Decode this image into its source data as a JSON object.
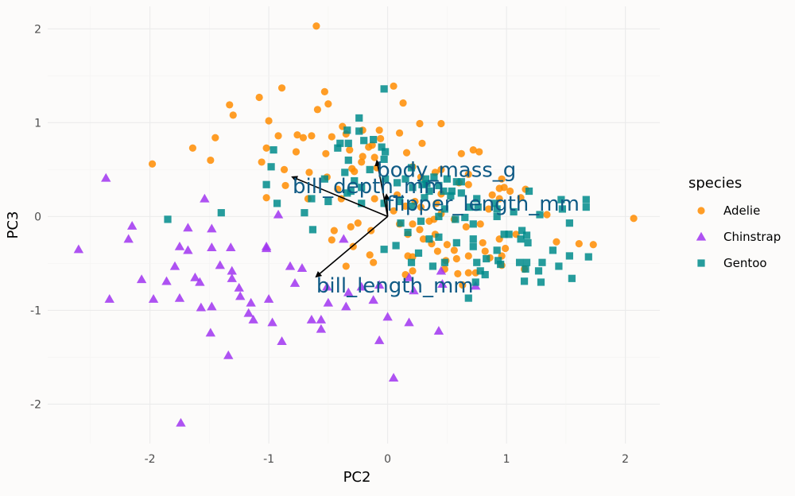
{
  "chart_data": {
    "type": "scatter",
    "title": "",
    "xlabel": "PC2",
    "ylabel": "PC3",
    "xlim": [
      -2.86,
      2.29
    ],
    "ylim": [
      -2.42,
      2.24
    ],
    "xticks": [
      -2,
      -1,
      0,
      1,
      2
    ],
    "yticks": [
      -2,
      -1,
      0,
      1,
      2
    ],
    "xtick_labels": [
      "-2",
      "-1",
      "0",
      "1",
      "2"
    ],
    "ytick_labels": [
      "-2",
      "-1",
      "0",
      "1",
      "2"
    ],
    "grid": true,
    "legend": {
      "title": "species",
      "position": "right"
    },
    "series": [
      {
        "name": "Adelie",
        "color": "#ff8c00",
        "marker": "circle",
        "points": [
          [
            -0.6,
            2.03
          ],
          [
            -0.89,
            1.37
          ],
          [
            -0.53,
            1.33
          ],
          [
            0.05,
            1.39
          ],
          [
            -1.08,
            1.27
          ],
          [
            -0.5,
            1.2
          ],
          [
            -0.59,
            1.14
          ],
          [
            -1.33,
            1.19
          ],
          [
            -1.3,
            1.08
          ],
          [
            0.13,
            1.21
          ],
          [
            -1.0,
            1.02
          ],
          [
            -1.45,
            0.84
          ],
          [
            -1.64,
            0.73
          ],
          [
            -1.49,
            0.6
          ],
          [
            -1.98,
            0.56
          ],
          [
            -1.02,
            0.73
          ],
          [
            -1.06,
            0.58
          ],
          [
            -0.92,
            0.86
          ],
          [
            -0.76,
            0.87
          ],
          [
            -0.71,
            0.84
          ],
          [
            -0.77,
            0.69
          ],
          [
            -0.64,
            0.86
          ],
          [
            -0.47,
            0.85
          ],
          [
            -0.38,
            0.96
          ],
          [
            -0.35,
            0.88
          ],
          [
            -0.21,
            0.92
          ],
          [
            -0.07,
            0.92
          ],
          [
            -0.06,
            0.83
          ],
          [
            0.1,
            0.89
          ],
          [
            0.27,
            0.99
          ],
          [
            0.45,
            0.99
          ],
          [
            -0.52,
            0.67
          ],
          [
            -0.66,
            0.47
          ],
          [
            -0.87,
            0.5
          ],
          [
            -0.86,
            0.33
          ],
          [
            -0.67,
            0.19
          ],
          [
            -1.02,
            0.2
          ],
          [
            -0.51,
            0.42
          ],
          [
            -0.32,
            0.71
          ],
          [
            -0.28,
            0.48
          ],
          [
            -0.16,
            0.74
          ],
          [
            -0.13,
            0.76
          ],
          [
            -0.21,
            0.64
          ],
          [
            -0.11,
            0.63
          ],
          [
            -0.3,
            0.51
          ],
          [
            -0.22,
            0.58
          ],
          [
            0.16,
            0.68
          ],
          [
            0.29,
            0.78
          ],
          [
            0.21,
            0.53
          ],
          [
            0.28,
            0.42
          ],
          [
            0.4,
            0.47
          ],
          [
            0.45,
            0.5
          ],
          [
            0.62,
            0.67
          ],
          [
            0.72,
            0.71
          ],
          [
            0.77,
            0.69
          ],
          [
            0.68,
            0.45
          ],
          [
            0.68,
            0.34
          ],
          [
            0.6,
            0.36
          ],
          [
            0.45,
            0.24
          ],
          [
            0.23,
            0.16
          ],
          [
            0.08,
            0.23
          ],
          [
            0.05,
            0.06
          ],
          [
            0.15,
            0.11
          ],
          [
            0.28,
            0.1
          ],
          [
            0.41,
            0.14
          ],
          [
            0.39,
            -0.03
          ],
          [
            0.45,
            0.03
          ],
          [
            0.35,
            -0.05
          ],
          [
            0.21,
            -0.08
          ],
          [
            0.1,
            -0.08
          ],
          [
            0.17,
            -0.19
          ],
          [
            0.27,
            -0.14
          ],
          [
            0.4,
            -0.19
          ],
          [
            0.3,
            -0.24
          ],
          [
            0.56,
            -0.03
          ],
          [
            0.66,
            -0.11
          ],
          [
            0.78,
            -0.08
          ],
          [
            0.85,
            0.08
          ],
          [
            0.88,
            0.23
          ],
          [
            0.94,
            0.19
          ],
          [
            0.94,
            0.3
          ],
          [
            0.96,
            0.4
          ],
          [
            0.98,
            0.31
          ],
          [
            1.03,
            0.27
          ],
          [
            1.16,
            0.29
          ],
          [
            1.12,
            0.2
          ],
          [
            0.94,
            -0.24
          ],
          [
            0.5,
            -0.3
          ],
          [
            0.37,
            -0.29
          ],
          [
            0.56,
            -0.36
          ],
          [
            0.58,
            -0.45
          ],
          [
            0.49,
            -0.47
          ],
          [
            0.42,
            -0.37
          ],
          [
            0.68,
            -0.42
          ],
          [
            0.8,
            -0.28
          ],
          [
            0.82,
            -0.37
          ],
          [
            0.86,
            -0.44
          ],
          [
            0.96,
            -0.42
          ],
          [
            0.99,
            -0.34
          ],
          [
            0.96,
            -0.52
          ],
          [
            0.68,
            -0.6
          ],
          [
            0.63,
            -0.73
          ],
          [
            0.48,
            -0.56
          ],
          [
            0.59,
            -0.61
          ],
          [
            0.17,
            -0.42
          ],
          [
            0.21,
            -0.43
          ],
          [
            0.15,
            -0.62
          ],
          [
            0.21,
            -0.58
          ],
          [
            0.74,
            -0.6
          ],
          [
            1.08,
            -0.19
          ],
          [
            1.34,
            0.02
          ],
          [
            1.42,
            -0.27
          ],
          [
            1.61,
            -0.29
          ],
          [
            1.73,
            -0.3
          ],
          [
            2.07,
            -0.02
          ],
          [
            1.15,
            -0.56
          ],
          [
            -0.09,
            0.52
          ],
          [
            -0.11,
            0.19
          ],
          [
            -0.25,
            -0.07
          ],
          [
            -0.14,
            -0.15
          ],
          [
            -0.29,
            -0.32
          ],
          [
            -0.15,
            -0.41
          ],
          [
            -0.31,
            -0.11
          ],
          [
            -0.39,
            0.19
          ],
          [
            -0.42,
            0.29
          ],
          [
            -0.45,
            -0.15
          ],
          [
            -0.47,
            -0.25
          ],
          [
            -0.35,
            -0.53
          ],
          [
            -0.12,
            -0.49
          ]
        ]
      },
      {
        "name": "Chinstrap",
        "color": "#a034f0",
        "marker": "triangle",
        "points": [
          [
            -2.37,
            0.41
          ],
          [
            -2.6,
            -0.35
          ],
          [
            -2.34,
            -0.88
          ],
          [
            -2.15,
            -0.1
          ],
          [
            -2.18,
            -0.24
          ],
          [
            -2.07,
            -0.67
          ],
          [
            -1.97,
            -0.88
          ],
          [
            -1.86,
            -0.69
          ],
          [
            -1.79,
            -0.53
          ],
          [
            -1.75,
            -0.32
          ],
          [
            -1.68,
            -0.12
          ],
          [
            -1.68,
            -0.36
          ],
          [
            -1.75,
            -0.87
          ],
          [
            -1.74,
            -2.2
          ],
          [
            -1.62,
            -0.65
          ],
          [
            -1.58,
            -0.7
          ],
          [
            -1.54,
            0.19
          ],
          [
            -1.48,
            -0.13
          ],
          [
            -1.57,
            -0.97
          ],
          [
            -1.49,
            -1.24
          ],
          [
            -1.48,
            -0.96
          ],
          [
            -1.48,
            -0.33
          ],
          [
            -1.41,
            -0.52
          ],
          [
            -1.32,
            -0.33
          ],
          [
            -1.31,
            -0.58
          ],
          [
            -1.31,
            -0.66
          ],
          [
            -1.25,
            -0.76
          ],
          [
            -1.24,
            -0.85
          ],
          [
            -1.34,
            -1.48
          ],
          [
            -1.15,
            -0.92
          ],
          [
            -1.13,
            -1.1
          ],
          [
            -1.17,
            -1.03
          ],
          [
            -1.02,
            -0.34
          ],
          [
            -1.0,
            -0.88
          ],
          [
            -0.97,
            -1.13
          ],
          [
            -0.89,
            -1.33
          ],
          [
            -0.92,
            0.02
          ],
          [
            -0.82,
            -0.53
          ],
          [
            -0.78,
            -0.71
          ],
          [
            -0.72,
            -0.55
          ],
          [
            -0.64,
            -1.1
          ],
          [
            -0.56,
            -1.2
          ],
          [
            -0.56,
            -1.1
          ],
          [
            -0.51,
            -0.75
          ],
          [
            -0.5,
            -0.92
          ],
          [
            -0.37,
            -0.24
          ],
          [
            -0.35,
            -0.96
          ],
          [
            -0.33,
            -0.81
          ],
          [
            -0.22,
            -0.75
          ],
          [
            -0.12,
            -0.89
          ],
          [
            -0.07,
            -0.73
          ],
          [
            -0.07,
            -1.32
          ],
          [
            0.0,
            -1.07
          ],
          [
            0.05,
            -1.72
          ],
          [
            0.18,
            -1.13
          ],
          [
            0.18,
            -0.65
          ],
          [
            0.22,
            -0.79
          ],
          [
            0.43,
            -1.22
          ],
          [
            0.45,
            -0.58
          ],
          [
            0.46,
            -0.72
          ],
          [
            0.74,
            -0.74
          ],
          [
            -1.02,
            -0.32
          ]
        ]
      },
      {
        "name": "Gentoo",
        "color": "#008b8b",
        "marker": "square",
        "points": [
          [
            -0.03,
            1.36
          ],
          [
            -0.24,
            1.05
          ],
          [
            -0.34,
            0.92
          ],
          [
            -0.4,
            0.78
          ],
          [
            -0.33,
            0.78
          ],
          [
            -0.24,
            0.91
          ],
          [
            -0.2,
            0.81
          ],
          [
            -0.42,
            0.73
          ],
          [
            -0.33,
            0.6
          ],
          [
            -0.36,
            0.47
          ],
          [
            -0.28,
            0.38
          ],
          [
            -0.53,
            0.4
          ],
          [
            -0.5,
            0.16
          ],
          [
            -0.64,
            0.19
          ],
          [
            -0.96,
            0.71
          ],
          [
            -0.98,
            0.53
          ],
          [
            -1.02,
            0.34
          ],
          [
            -0.93,
            0.14
          ],
          [
            -0.7,
            0.04
          ],
          [
            -0.63,
            -0.14
          ],
          [
            -1.4,
            0.04
          ],
          [
            -1.85,
            -0.03
          ],
          [
            -0.31,
            0.27
          ],
          [
            -0.22,
            0.31
          ],
          [
            -0.15,
            0.5
          ],
          [
            -0.03,
            0.61
          ],
          [
            -0.02,
            0.69
          ],
          [
            -0.12,
            0.82
          ],
          [
            -0.05,
            0.74
          ],
          [
            -0.02,
            0.4
          ],
          [
            0.08,
            0.36
          ],
          [
            0.15,
            0.4
          ],
          [
            0.21,
            0.31
          ],
          [
            0.29,
            0.34
          ],
          [
            0.31,
            0.2
          ],
          [
            0.32,
            0.4
          ],
          [
            0.39,
            0.42
          ],
          [
            0.35,
            0.27
          ],
          [
            0.43,
            0.33
          ],
          [
            0.5,
            0.4
          ],
          [
            0.62,
            0.37
          ],
          [
            0.53,
            0.22
          ],
          [
            0.58,
            0.37
          ],
          [
            0.62,
            0.25
          ],
          [
            0.75,
            0.19
          ],
          [
            0.76,
            0.1
          ],
          [
            0.9,
            0.14
          ],
          [
            0.92,
            0.08
          ],
          [
            1.06,
            0.05
          ],
          [
            1.19,
            0.27
          ],
          [
            1.28,
            0.02
          ],
          [
            1.46,
            0.18
          ],
          [
            1.47,
            0.08
          ],
          [
            1.67,
            0.18
          ],
          [
            1.67,
            0.1
          ],
          [
            0.28,
            -0.05
          ],
          [
            0.43,
            0.0
          ],
          [
            0.48,
            0.08
          ],
          [
            0.57,
            -0.03
          ],
          [
            0.65,
            -0.01
          ],
          [
            0.72,
            -0.08
          ],
          [
            0.92,
            0.0
          ],
          [
            0.72,
            -0.24
          ],
          [
            0.72,
            -0.32
          ],
          [
            0.58,
            -0.28
          ],
          [
            0.43,
            -0.22
          ],
          [
            0.35,
            -0.24
          ],
          [
            0.17,
            -0.17
          ],
          [
            0.26,
            -0.39
          ],
          [
            0.2,
            -0.49
          ],
          [
            0.07,
            -0.31
          ],
          [
            -0.03,
            -0.35
          ],
          [
            0.38,
            -0.53
          ],
          [
            0.48,
            -0.49
          ],
          [
            0.75,
            -0.49
          ],
          [
            0.83,
            -0.45
          ],
          [
            1.02,
            -0.19
          ],
          [
            0.98,
            -0.19
          ],
          [
            1.13,
            -0.15
          ],
          [
            1.17,
            -0.2
          ],
          [
            1.12,
            -0.24
          ],
          [
            1.18,
            -0.28
          ],
          [
            0.92,
            -0.36
          ],
          [
            0.95,
            -0.51
          ],
          [
            0.93,
            -0.47
          ],
          [
            0.78,
            -0.58
          ],
          [
            0.74,
            -0.7
          ],
          [
            0.82,
            -0.62
          ],
          [
            0.68,
            -0.87
          ],
          [
            1.11,
            -0.49
          ],
          [
            1.17,
            -0.49
          ],
          [
            1.15,
            -0.69
          ],
          [
            1.16,
            -0.56
          ],
          [
            1.3,
            -0.49
          ],
          [
            1.39,
            -0.36
          ],
          [
            1.53,
            -0.42
          ],
          [
            1.55,
            -0.66
          ],
          [
            1.69,
            -0.43
          ],
          [
            1.44,
            -0.53
          ],
          [
            1.27,
            -0.58
          ],
          [
            1.53,
            -0.07
          ],
          [
            1.29,
            -0.7
          ],
          [
            0.69,
            0.1
          ],
          [
            0.2,
            0.11
          ],
          [
            0.11,
            -0.07
          ],
          [
            0.47,
            0.27
          ],
          [
            0.54,
            0.27
          ],
          [
            0.2,
            0.52
          ],
          [
            0.33,
            0.35
          ],
          [
            0.1,
            0.16
          ],
          [
            -0.22,
            0.14
          ],
          [
            -0.34,
            0.25
          ],
          [
            -0.03,
            0.14
          ]
        ]
      }
    ],
    "loadings": {
      "color": "#0f5a85",
      "arrow_color": "#000000",
      "vectors": [
        {
          "label": "body_mass_g",
          "x": -0.09,
          "y": 0.59
        },
        {
          "label": "bill_depth_mm",
          "x": -0.8,
          "y": 0.42
        },
        {
          "label": "flipper_length_mm",
          "x": -0.01,
          "y": 0.23
        },
        {
          "label": "bill_length_mm",
          "x": -0.6,
          "y": -0.64
        }
      ]
    }
  }
}
